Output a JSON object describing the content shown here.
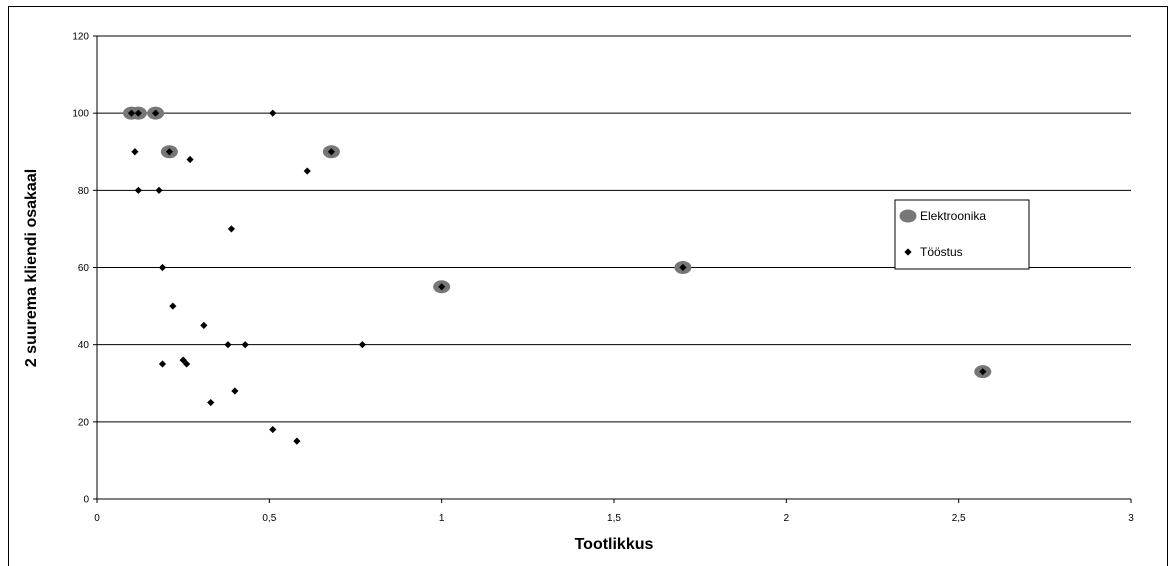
{
  "chart_data": {
    "type": "scatter",
    "title": "",
    "xlabel": "Tootlikkus",
    "ylabel": "2 suurema kliendi osakaal",
    "xlim": [
      0,
      3
    ],
    "ylim": [
      0,
      120
    ],
    "x_ticks": [
      "0",
      "0,5",
      "1",
      "1,5",
      "2",
      "2,5",
      "3"
    ],
    "x_tick_values": [
      0,
      0.5,
      1,
      1.5,
      2,
      2.5,
      3
    ],
    "y_ticks": [
      "0",
      "20",
      "40",
      "60",
      "80",
      "100",
      "120"
    ],
    "y_tick_values": [
      0,
      20,
      40,
      60,
      80,
      100,
      120
    ],
    "grid": "horizontal",
    "legend_position": "right",
    "series": [
      {
        "name": "Elektroonika",
        "marker": "circle",
        "color": "#777777",
        "points": [
          [
            0.1,
            100
          ],
          [
            0.12,
            100
          ],
          [
            0.17,
            100
          ],
          [
            0.21,
            90
          ],
          [
            0.68,
            90
          ],
          [
            1.0,
            55
          ],
          [
            1.7,
            60
          ],
          [
            2.57,
            33
          ]
        ]
      },
      {
        "name": "Tööstus",
        "marker": "diamond",
        "color": "#000000",
        "points": [
          [
            0.1,
            100
          ],
          [
            0.12,
            100
          ],
          [
            0.17,
            100
          ],
          [
            0.51,
            100
          ],
          [
            0.11,
            90
          ],
          [
            0.21,
            90
          ],
          [
            0.68,
            90
          ],
          [
            0.27,
            88
          ],
          [
            0.61,
            85
          ],
          [
            0.12,
            80
          ],
          [
            0.18,
            80
          ],
          [
            0.39,
            70
          ],
          [
            0.19,
            60
          ],
          [
            1.7,
            60
          ],
          [
            1.0,
            55
          ],
          [
            0.22,
            50
          ],
          [
            0.31,
            45
          ],
          [
            0.38,
            40
          ],
          [
            0.43,
            40
          ],
          [
            0.77,
            40
          ],
          [
            0.25,
            36
          ],
          [
            0.26,
            35
          ],
          [
            0.19,
            35
          ],
          [
            2.57,
            33
          ],
          [
            0.4,
            28
          ],
          [
            0.33,
            25
          ],
          [
            0.51,
            18
          ],
          [
            0.58,
            15
          ]
        ]
      }
    ]
  }
}
